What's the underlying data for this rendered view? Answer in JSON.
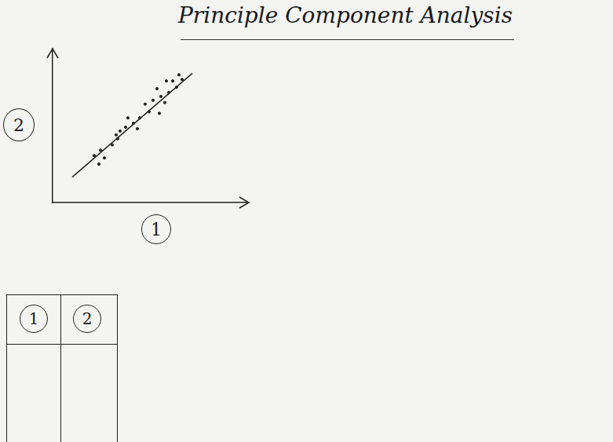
{
  "title": "Principle Component Analysis",
  "chart_data": {
    "type": "scatter",
    "x_label": "1",
    "y_label": "2",
    "xlim": [
      0,
      250
    ],
    "ylim": [
      0,
      200
    ],
    "tick_labels": false,
    "grid": false,
    "series": [
      {
        "type": "scatter",
        "marker": "circle",
        "color": "#222222",
        "x": [
          59,
          53,
          66,
          61,
          76,
          83,
          86,
          81,
          93,
          96,
          103,
          111,
          108,
          118,
          123,
          128,
          133,
          138,
          136,
          143,
          148,
          153,
          158,
          161,
          165,
          145
        ],
        "values": [
          50,
          61,
          58,
          68,
          75,
          83,
          93,
          88,
          98,
          110,
          103,
          110,
          96,
          128,
          118,
          133,
          148,
          138,
          116,
          130,
          143,
          158,
          150,
          166,
          160,
          158
        ]
      },
      {
        "type": "line",
        "line_style": "solid",
        "color": "#222222",
        "x": [
          25,
          178
        ],
        "values": [
          33,
          168
        ]
      }
    ]
  },
  "table": {
    "header": [
      "1",
      "2"
    ]
  }
}
